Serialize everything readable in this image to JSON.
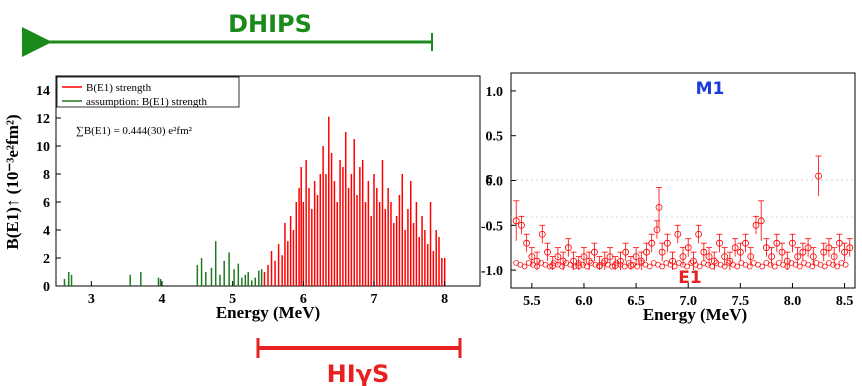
{
  "banners": {
    "dhips": {
      "label": "DHIPS",
      "color": "#1a8a1a"
    },
    "higs": {
      "label": "HIγS",
      "color": "#e82020"
    }
  },
  "colors": {
    "red": "#ff0000",
    "green": "#1e7a1e"
  },
  "left_panel": {
    "ylabel": "B(E1)↑ (10⁻³e²fm²)",
    "xlabel": "Energy (MeV)",
    "legend": [
      "B(E1) strength",
      "assumption: B(E1) strength"
    ],
    "sum_annotation": "∑B(E1) = 0.444(30) e²fm²",
    "xticks": [
      "3",
      "4",
      "5",
      "6",
      "7",
      "8"
    ],
    "yticks": [
      "0",
      "2",
      "4",
      "6",
      "8",
      "10",
      "12",
      "14"
    ]
  },
  "right_panel": {
    "label_top": "M1",
    "label_bottom": "E1",
    "ylabel": "ε",
    "xlabel": "Energy (MeV)",
    "xticks": [
      "5.5",
      "6.0",
      "6.5",
      "7.0",
      "7.5",
      "8.0",
      "8.5"
    ],
    "yticks": [
      "1.0",
      "0.5",
      "0.0",
      "-0.5",
      "-1.0"
    ]
  },
  "chart_data": [
    {
      "type": "bar",
      "title": "",
      "xlabel": "Energy (MeV)",
      "ylabel": "B(E1)↑ (10⁻³e²fm²)",
      "xlim": [
        2.5,
        8.5
      ],
      "ylim": [
        0,
        15
      ],
      "series": [
        {
          "name": "assumption: B(E1) strength",
          "x": [
            2.62,
            2.68,
            2.72,
            3.55,
            3.7,
            3.95,
            3.98,
            4.5,
            4.56,
            4.62,
            4.7,
            4.76,
            4.82,
            4.88,
            4.95,
            5.02,
            5.08,
            5.13,
            5.18,
            5.22,
            5.27,
            5.32,
            5.37,
            5.41
          ],
          "values": [
            0.5,
            1.0,
            0.8,
            0.8,
            1.0,
            0.6,
            0.5,
            1.5,
            2.0,
            1.0,
            1.3,
            3.2,
            0.8,
            1.8,
            2.4,
            1.2,
            1.6,
            0.6,
            0.8,
            1.0,
            0.4,
            0.6,
            1.1,
            1.2
          ]
        },
        {
          "name": "B(E1) strength",
          "x": [
            5.45,
            5.5,
            5.55,
            5.6,
            5.65,
            5.7,
            5.74,
            5.78,
            5.82,
            5.86,
            5.9,
            5.94,
            5.97,
            6.0,
            6.04,
            6.08,
            6.12,
            6.16,
            6.2,
            6.24,
            6.28,
            6.32,
            6.36,
            6.4,
            6.44,
            6.48,
            6.52,
            6.56,
            6.6,
            6.64,
            6.68,
            6.72,
            6.76,
            6.8,
            6.84,
            6.88,
            6.92,
            6.96,
            7.0,
            7.04,
            7.08,
            7.12,
            7.16,
            7.2,
            7.24,
            7.28,
            7.32,
            7.36,
            7.4,
            7.44,
            7.48,
            7.52,
            7.56,
            7.6,
            7.64,
            7.68,
            7.72,
            7.76,
            7.8,
            7.84,
            7.88,
            7.92,
            7.96,
            8.0
          ],
          "values": [
            1.0,
            1.5,
            2.5,
            1.8,
            3.0,
            2.2,
            4.5,
            3.2,
            5.0,
            4.0,
            6.0,
            7.0,
            8.5,
            6.0,
            9.0,
            7.0,
            5.5,
            7.5,
            6.5,
            8.0,
            10.0,
            8.0,
            12.1,
            9.5,
            7.5,
            6.0,
            9.0,
            8.5,
            11.0,
            7.0,
            8.0,
            10.5,
            6.5,
            8.5,
            9.0,
            6.0,
            7.5,
            5.0,
            8.0,
            7.0,
            6.0,
            9.0,
            5.5,
            7.0,
            6.0,
            4.5,
            5.0,
            6.5,
            8.0,
            4.0,
            5.5,
            7.5,
            4.5,
            6.0,
            3.5,
            5.0,
            4.0,
            3.0,
            6.0,
            2.5,
            4.0,
            3.5,
            2.0,
            2.0
          ]
        }
      ]
    },
    {
      "type": "scatter",
      "title": "",
      "xlabel": "Energy (MeV)",
      "ylabel": "ε",
      "xlim": [
        5.3,
        8.6
      ],
      "ylim": [
        -1.2,
        1.2
      ],
      "x": [
        5.35,
        5.4,
        5.45,
        5.5,
        5.55,
        5.6,
        5.65,
        5.7,
        5.75,
        5.8,
        5.85,
        5.9,
        5.95,
        6.0,
        6.05,
        6.1,
        6.15,
        6.2,
        6.25,
        6.3,
        6.35,
        6.4,
        6.45,
        6.5,
        6.55,
        6.6,
        6.65,
        6.7,
        6.72,
        6.75,
        6.8,
        6.85,
        6.9,
        6.95,
        7.0,
        7.05,
        7.1,
        7.15,
        7.2,
        7.25,
        7.3,
        7.35,
        7.4,
        7.45,
        7.5,
        7.55,
        7.6,
        7.65,
        7.7,
        7.75,
        7.8,
        7.85,
        7.9,
        7.95,
        8.0,
        8.05,
        8.1,
        8.15,
        8.2,
        8.25,
        8.3,
        8.35,
        8.4,
        8.45,
        8.5,
        8.55
      ],
      "y": [
        -0.45,
        -0.5,
        -0.7,
        -0.85,
        -0.9,
        -0.6,
        -0.8,
        -0.95,
        -0.85,
        -0.9,
        -0.75,
        -0.9,
        -0.95,
        -0.85,
        -0.9,
        -0.8,
        -0.95,
        -0.9,
        -0.85,
        -0.95,
        -0.9,
        -0.8,
        -0.95,
        -0.85,
        -0.9,
        -0.8,
        -0.7,
        -0.55,
        -0.3,
        -0.8,
        -0.7,
        -0.9,
        -0.6,
        -0.85,
        -0.75,
        -0.9,
        -0.6,
        -0.8,
        -0.85,
        -0.9,
        -0.7,
        -0.85,
        -0.9,
        -0.75,
        -0.8,
        -0.7,
        -0.85,
        -0.5,
        -0.45,
        -0.75,
        -0.85,
        -0.7,
        -0.8,
        -0.9,
        -0.7,
        -0.85,
        -0.8,
        -0.75,
        -0.85,
        0.05,
        -0.8,
        -0.75,
        -0.85,
        -0.7,
        -0.8,
        -0.75
      ]
    }
  ]
}
